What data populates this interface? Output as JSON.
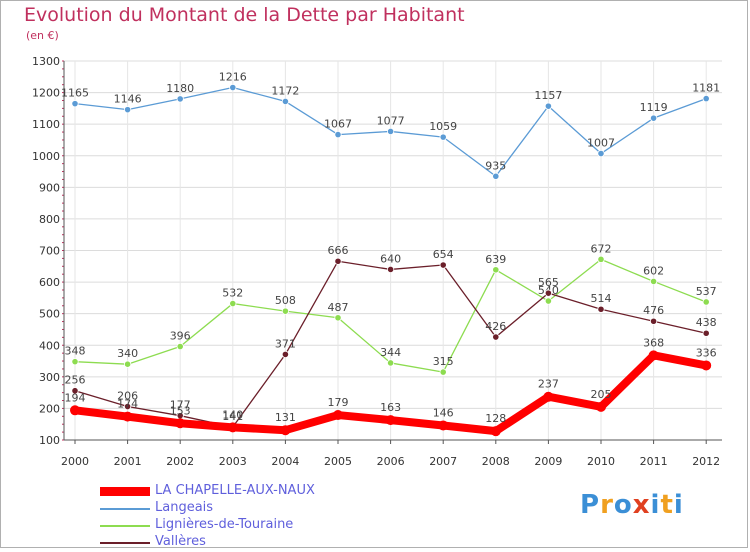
{
  "header": {
    "title": "Evolution du Montant de la Dette par Habitant",
    "subtitle": "(en €)"
  },
  "logo": {
    "text": "Proxiti",
    "colors": [
      "#3b8fd6",
      "#f0a020",
      "#3b8fd6",
      "#e04020",
      "#3b8fd6",
      "#f0a020",
      "#3b8fd6"
    ]
  },
  "chart_data": {
    "type": "line",
    "title": "Evolution du Montant de la Dette par Habitant",
    "subtitle": "(en €)",
    "xlabel": "",
    "ylabel": "",
    "x": [
      "2000",
      "2001",
      "2002",
      "2003",
      "2004",
      "2005",
      "2006",
      "2007",
      "2008",
      "2009",
      "2010",
      "2011",
      "2012"
    ],
    "ylim": [
      100,
      1300
    ],
    "yticks": [
      100,
      200,
      300,
      400,
      500,
      600,
      700,
      800,
      900,
      1000,
      1100,
      1200,
      1300
    ],
    "grid": true,
    "legend_position": "bottom-left",
    "series": [
      {
        "name": "Langeais",
        "color": "#5b9bd5",
        "values": [
          1165,
          1146,
          1180,
          1216,
          1172,
          1067,
          1077,
          1059,
          935,
          1157,
          1007,
          1119,
          1181
        ]
      },
      {
        "name": "Lignières-de-Touraine",
        "color": "#8ddc50",
        "values": [
          348,
          340,
          396,
          532,
          508,
          487,
          344,
          315,
          639,
          540,
          672,
          602,
          537
        ]
      },
      {
        "name": "Vallères",
        "color": "#6b1f2a",
        "values": [
          256,
          206,
          177,
          141,
          371,
          666,
          640,
          654,
          426,
          565,
          514,
          476,
          438
        ]
      },
      {
        "name": "LA CHAPELLE-AUX-NAUX",
        "color": "#ff0000",
        "values": [
          194,
          174,
          153,
          140,
          131,
          179,
          163,
          146,
          128,
          237,
          205,
          368,
          336
        ]
      }
    ],
    "legend_order": [
      "LA CHAPELLE-AUX-NAUX",
      "Langeais",
      "Lignières-de-Touraine",
      "Vallères"
    ]
  }
}
